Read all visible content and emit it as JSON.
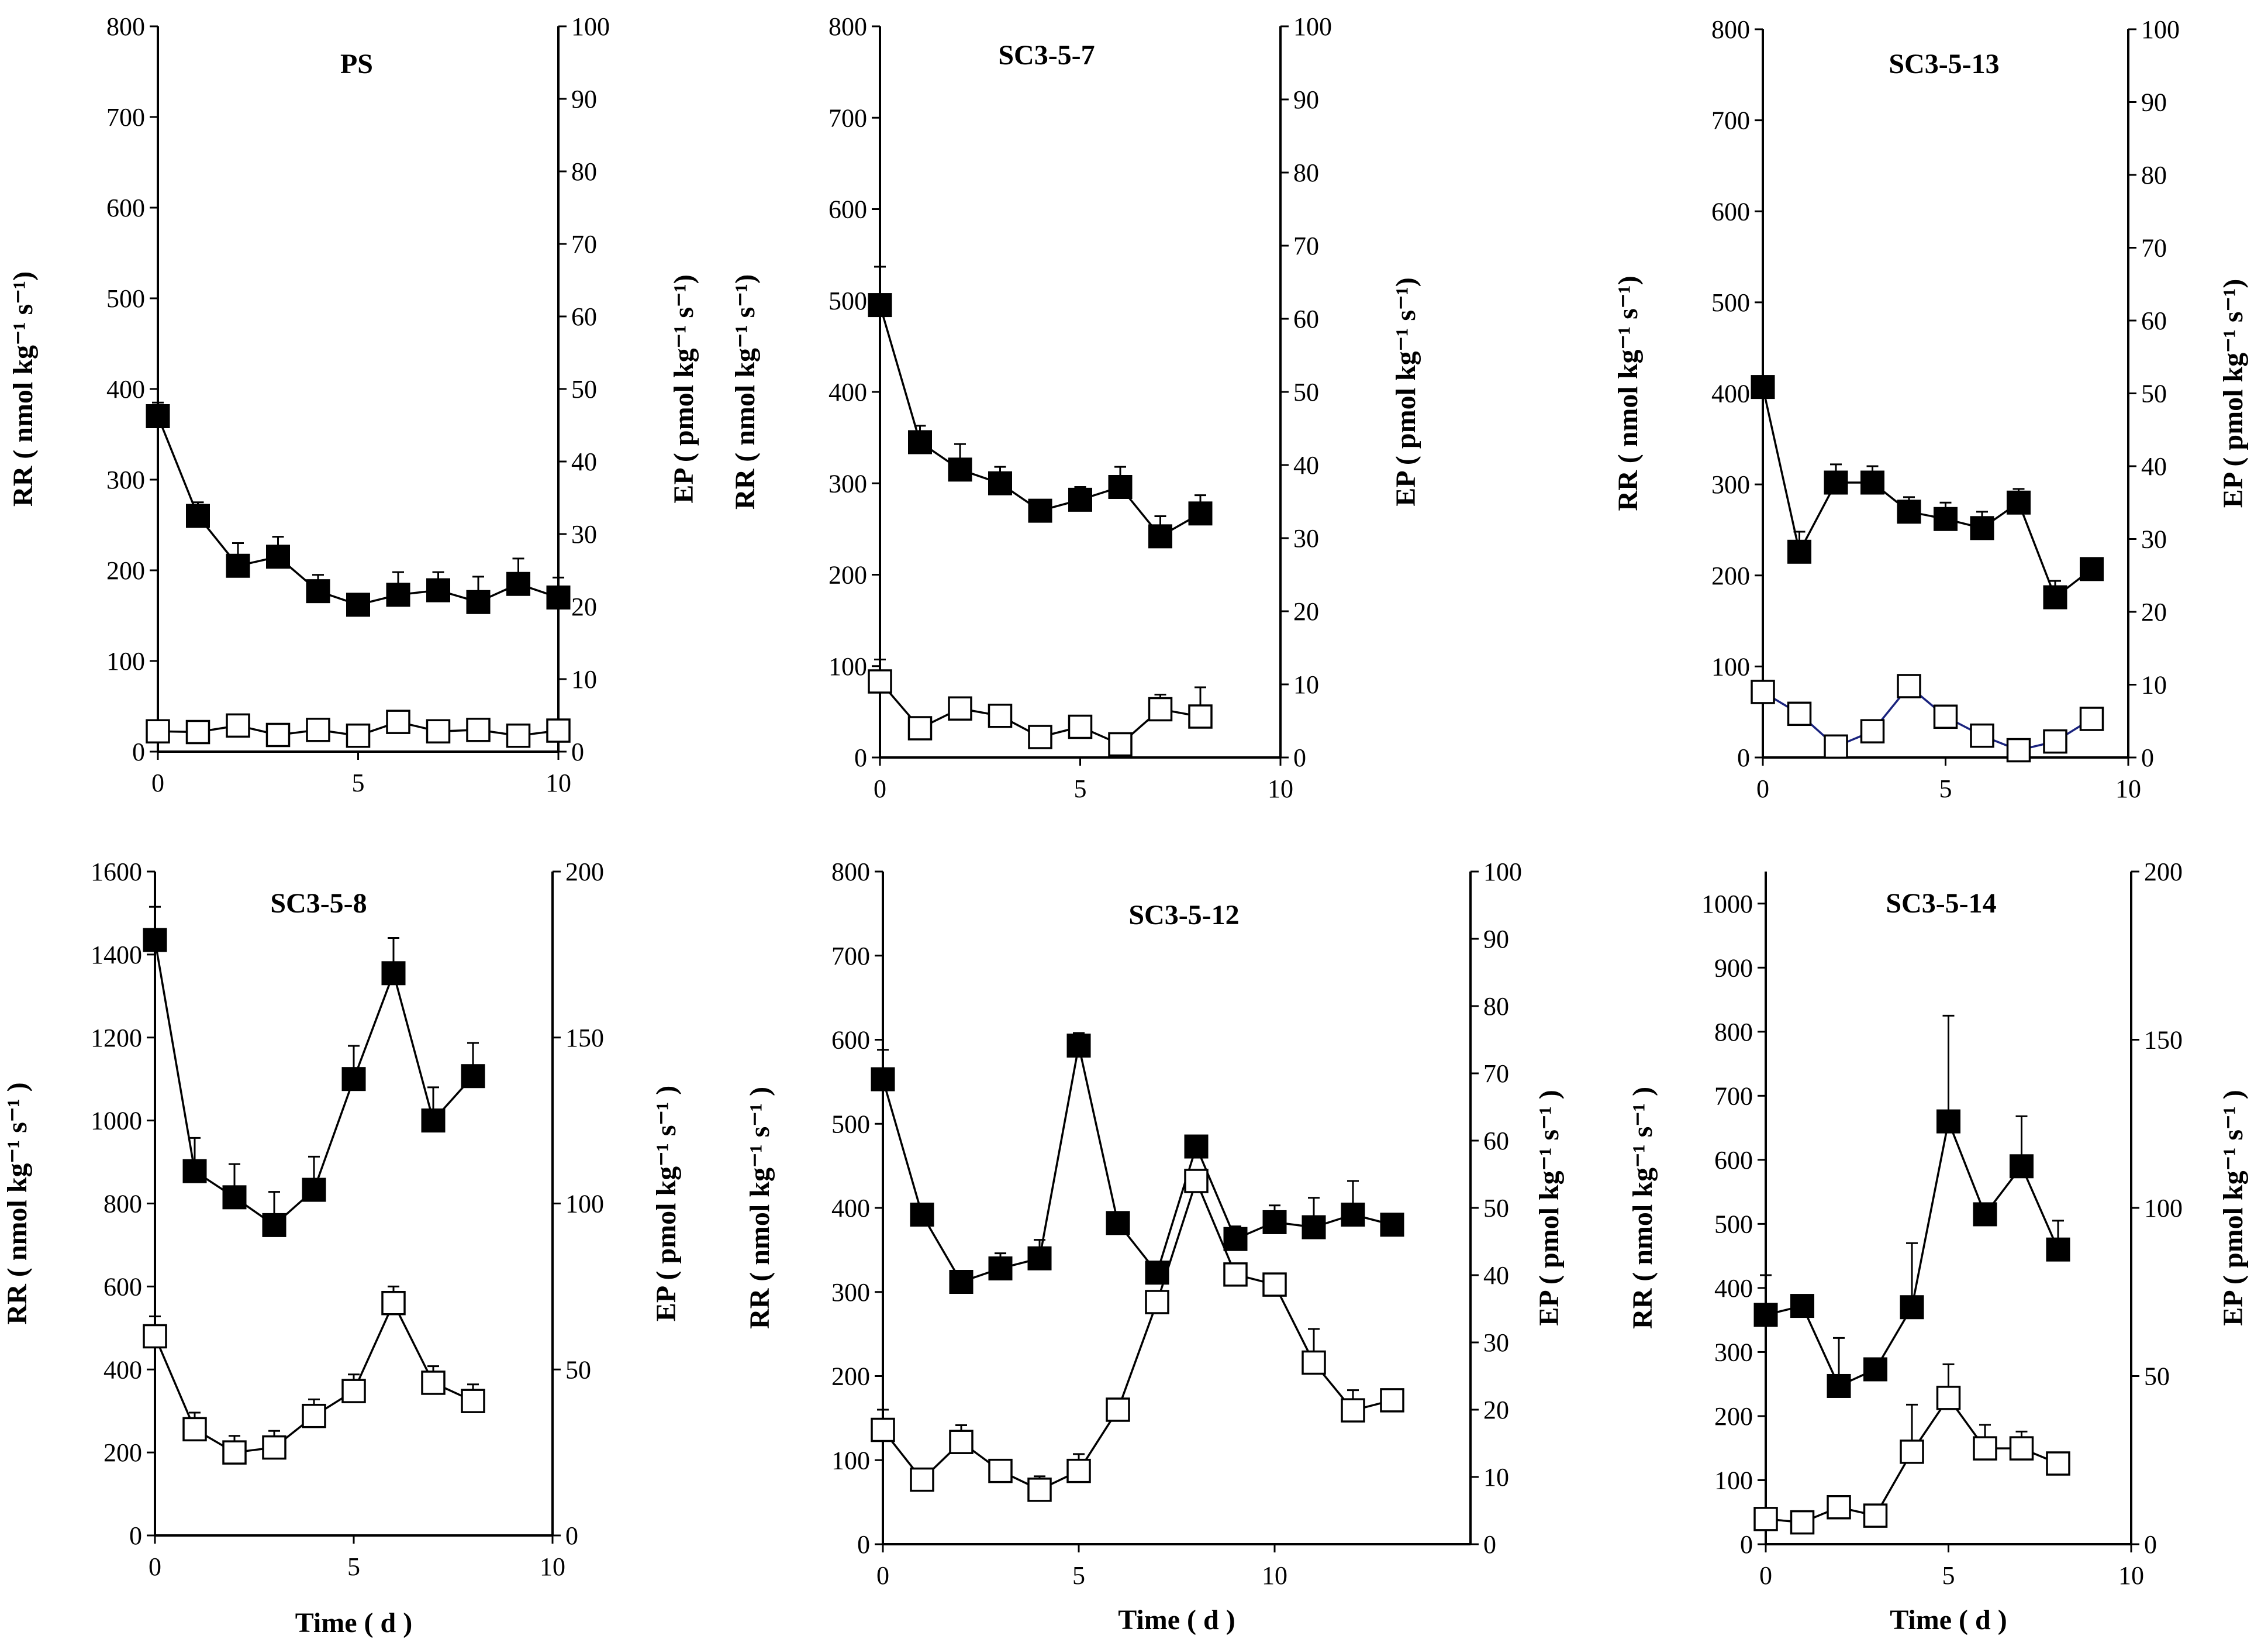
{
  "chart_data": [
    {
      "type": "line",
      "title": "PS",
      "xlabel": "",
      "ylabel": "RR ( nmol kg⁻¹ s⁻¹)",
      "y2label": "EP ( pmol kg⁻¹ s⁻¹)",
      "xlim": [
        0,
        10
      ],
      "xticks": [
        "0",
        "5",
        "10"
      ],
      "ylim": [
        0,
        800
      ],
      "yticks": [
        "0",
        "100",
        "200",
        "300",
        "400",
        "500",
        "600",
        "700",
        "800"
      ],
      "y2lim": [
        0,
        100
      ],
      "y2ticks": [
        "0",
        "10",
        "20",
        "30",
        "40",
        "50",
        "60",
        "70",
        "80",
        "90",
        "100"
      ],
      "series": [
        {
          "name": "RR",
          "axis": "left",
          "marker": "filled-square",
          "x": [
            0,
            1,
            2,
            3,
            4,
            5,
            6,
            7,
            8,
            9,
            10
          ],
          "values": [
            370,
            260,
            205,
            215,
            177,
            162,
            173,
            178,
            165,
            185,
            170
          ],
          "errors": [
            15,
            15,
            25,
            22,
            18,
            12,
            25,
            20,
            28,
            28,
            22
          ]
        },
        {
          "name": "EP",
          "axis": "right",
          "marker": "open-square",
          "x": [
            0,
            1,
            2,
            3,
            4,
            5,
            6,
            7,
            8,
            9,
            10
          ],
          "values": [
            2.8,
            2.7,
            3.6,
            2.3,
            3.0,
            2.2,
            4.1,
            2.8,
            3.0,
            2.2,
            2.9
          ],
          "errors": [
            0.3,
            0.3,
            0.4,
            0.3,
            0.3,
            1.5,
            0.4,
            0.3,
            0.3,
            0.3,
            0.4
          ]
        }
      ]
    },
    {
      "type": "line",
      "title": "SC3-5-7",
      "xlabel": "",
      "ylabel": "RR ( nmol kg⁻¹ s⁻¹)",
      "y2label": "EP ( pmol kg⁻¹ s⁻¹)",
      "xlim": [
        0,
        10
      ],
      "xticks": [
        "0",
        "5",
        "10"
      ],
      "ylim": [
        0,
        800
      ],
      "yticks": [
        "0",
        "100",
        "200",
        "300",
        "400",
        "500",
        "600",
        "700",
        "800"
      ],
      "y2lim": [
        0,
        100
      ],
      "y2ticks": [
        "0",
        "10",
        "20",
        "30",
        "40",
        "50",
        "60",
        "70",
        "80",
        "90",
        "100"
      ],
      "series": [
        {
          "name": "RR",
          "axis": "left",
          "marker": "filled-square",
          "x": [
            0,
            1,
            2,
            3,
            4,
            5,
            6,
            7,
            8
          ],
          "values": [
            495,
            345,
            315,
            300,
            270,
            282,
            296,
            242,
            267
          ],
          "errors": [
            42,
            18,
            28,
            18,
            8,
            14,
            22,
            22,
            20
          ]
        },
        {
          "name": "EP",
          "axis": "right",
          "marker": "open-square",
          "x": [
            0,
            1,
            2,
            3,
            4,
            5,
            6,
            7,
            8
          ],
          "values": [
            10.4,
            4.0,
            6.7,
            5.7,
            2.8,
            4.2,
            1.8,
            6.6,
            5.6
          ],
          "errors": [
            3.0,
            0.5,
            1.0,
            0.6,
            0.5,
            0.6,
            0.4,
            2.0,
            4.0
          ]
        }
      ]
    },
    {
      "type": "line",
      "title": "SC3-5-13",
      "xlabel": "",
      "ylabel": "RR ( nmol kg⁻¹ s⁻¹)",
      "y2label": "EP ( pmol kg⁻¹ s⁻¹)",
      "xlim": [
        0,
        10
      ],
      "xticks": [
        "0",
        "5",
        "10"
      ],
      "ylim": [
        0,
        800
      ],
      "yticks": [
        "0",
        "100",
        "200",
        "300",
        "400",
        "500",
        "600",
        "700",
        "800"
      ],
      "y2lim": [
        0,
        100
      ],
      "y2ticks": [
        "0",
        "10",
        "20",
        "30",
        "40",
        "50",
        "60",
        "70",
        "80",
        "90",
        "100"
      ],
      "series": [
        {
          "name": "RR",
          "axis": "left",
          "marker": "filled-square",
          "x": [
            0,
            1,
            2,
            3,
            4,
            5,
            6,
            7,
            8,
            9
          ],
          "values": [
            407,
            226,
            302,
            302,
            270,
            262,
            252,
            280,
            176,
            207
          ],
          "errors": [
            12,
            22,
            20,
            18,
            16,
            18,
            18,
            15,
            18,
            6
          ]
        },
        {
          "name": "EP",
          "axis": "right",
          "marker": "open-square",
          "x": [
            0,
            1,
            2,
            3,
            4,
            5,
            6,
            7,
            8,
            9
          ],
          "values": [
            9.0,
            6.0,
            1.5,
            3.6,
            9.8,
            5.6,
            3.0,
            1.0,
            2.2,
            5.3
          ],
          "errors": [
            0.4,
            0.4,
            0.3,
            0.4,
            0.5,
            0.4,
            0.4,
            0.3,
            0.3,
            0.4
          ]
        }
      ]
    },
    {
      "type": "line",
      "title": "SC3-5-8",
      "xlabel": "Time ( d )",
      "ylabel": "RR ( nmol kg⁻¹ s⁻¹ )",
      "y2label": "EP ( pmol kg⁻¹ s⁻¹ )",
      "xlim": [
        0,
        10
      ],
      "xticks": [
        "0",
        "5",
        "10"
      ],
      "ylim": [
        0,
        1600
      ],
      "yticks": [
        "0",
        "200",
        "400",
        "600",
        "800",
        "1000",
        "1200",
        "1400",
        "1600"
      ],
      "y2lim": [
        0,
        200
      ],
      "y2ticks": [
        "0",
        "50",
        "100",
        "150",
        "200"
      ],
      "series": [
        {
          "name": "RR",
          "axis": "left",
          "marker": "filled-square",
          "x": [
            0,
            1,
            2,
            3,
            4,
            5,
            6,
            7,
            8
          ],
          "values": [
            1435,
            878,
            815,
            748,
            833,
            1100,
            1355,
            1000,
            1107
          ],
          "errors": [
            80,
            80,
            80,
            80,
            80,
            80,
            85,
            80,
            80
          ]
        },
        {
          "name": "EP",
          "axis": "right",
          "marker": "open-square",
          "x": [
            0,
            1,
            2,
            3,
            4,
            5,
            6,
            7,
            8
          ],
          "values": [
            60,
            32,
            25,
            26.5,
            36,
            43.5,
            70,
            46,
            40.5
          ],
          "errors": [
            6,
            5,
            5,
            5,
            5,
            5,
            5,
            5,
            5
          ]
        }
      ]
    },
    {
      "type": "line",
      "title": "SC3-5-12",
      "xlabel": "Time ( d )",
      "ylabel": "RR ( nmol kg⁻¹ s⁻¹ )",
      "y2label": "EP ( pmol kg⁻¹ s⁻¹ )",
      "xlim": [
        0,
        15
      ],
      "xticks": [
        "0",
        "5",
        "10"
      ],
      "ylim": [
        0,
        800
      ],
      "yticks": [
        "0",
        "100",
        "200",
        "300",
        "400",
        "500",
        "600",
        "700",
        "800"
      ],
      "y2lim": [
        0,
        100
      ],
      "y2ticks": [
        "0",
        "10",
        "20",
        "30",
        "40",
        "50",
        "60",
        "70",
        "80",
        "90",
        "100"
      ],
      "series": [
        {
          "name": "RR",
          "axis": "left",
          "marker": "filled-square",
          "x": [
            0,
            1,
            2,
            3,
            4,
            5,
            6,
            7,
            8,
            9,
            10,
            11,
            12,
            13
          ],
          "values": [
            553,
            392,
            312,
            328,
            340,
            593,
            382,
            323,
            473,
            363,
            383,
            377,
            392,
            380
          ],
          "errors": [
            35,
            8,
            8,
            18,
            22,
            15,
            8,
            8,
            8,
            15,
            20,
            35,
            40,
            8
          ]
        },
        {
          "name": "EP",
          "axis": "right",
          "marker": "open-square",
          "x": [
            0,
            1,
            2,
            3,
            4,
            5,
            6,
            7,
            8,
            9,
            10,
            11,
            12,
            13
          ],
          "values": [
            17,
            9.6,
            15.2,
            10.9,
            8.1,
            10.9,
            20,
            36,
            54,
            40.1,
            38.6,
            27,
            19.9,
            21.4
          ],
          "errors": [
            3,
            1,
            2.5,
            1,
            2,
            2.5,
            1,
            1.2,
            1.5,
            1,
            1.2,
            5,
            3,
            1
          ]
        }
      ]
    },
    {
      "type": "line",
      "title": "SC3-5-14",
      "xlabel": "Time ( d )",
      "ylabel": "RR ( nmol kg⁻¹ s⁻¹ )",
      "y2label": "EP ( pmol kg⁻¹ s⁻¹ )",
      "xlim": [
        0,
        10
      ],
      "xticks": [
        "0",
        "5",
        "10"
      ],
      "ylim": [
        0,
        1050
      ],
      "yticks": [
        "0",
        "100",
        "200",
        "300",
        "400",
        "500",
        "600",
        "700",
        "800",
        "900",
        "1000"
      ],
      "y2lim": [
        0,
        200
      ],
      "y2ticks": [
        "0",
        "50",
        "100",
        "150",
        "200"
      ],
      "series": [
        {
          "name": "RR",
          "axis": "left",
          "marker": "filled-square",
          "x": [
            0,
            1,
            2,
            3,
            4,
            5,
            6,
            7,
            8
          ],
          "values": [
            358,
            372,
            247,
            273,
            370,
            660,
            515,
            590,
            460
          ],
          "errors": [
            62,
            8,
            75,
            8,
            100,
            165,
            15,
            78,
            45
          ]
        },
        {
          "name": "EP",
          "axis": "right",
          "marker": "open-square",
          "x": [
            0,
            1,
            2,
            3,
            4,
            5,
            6,
            7,
            8
          ],
          "values": [
            7.5,
            6.5,
            11,
            8.5,
            27.5,
            43.5,
            28.5,
            28.5,
            24
          ],
          "errors": [
            1.5,
            1,
            1.5,
            1.5,
            14,
            10,
            7,
            5,
            1
          ]
        }
      ]
    }
  ]
}
